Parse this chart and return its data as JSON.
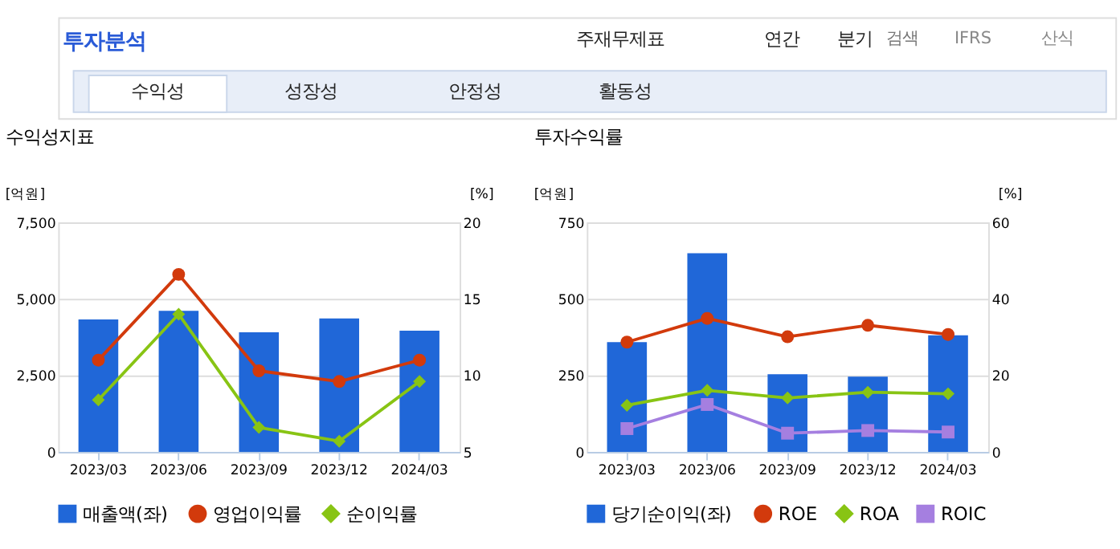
{
  "chart_data": [
    {
      "type": "bar",
      "title": "수익성지표",
      "ylabel": "[억원]",
      "y2label": "[%]",
      "annotations": [
        "투자분석",
        "주재무제표",
        "연간",
        "분기",
        "검색",
        "IFRS",
        "산식",
        "수익성",
        "성장성",
        "안정성",
        "활동성"
      ],
      "categories": [
        "2023/03",
        "2023/06",
        "2023/09",
        "2023/12",
        "2024/03"
      ],
      "series": [
        {
          "name": "매출액(좌)",
          "color": "#2067d8",
          "values": [
            4330,
            4610,
            3910,
            4360,
            3960
          ]
        },
        {
          "name": "영업이익률",
          "type": "line",
          "axis": "y2",
          "marker": "circle",
          "color": "#d23a0c",
          "values": [
            11.0,
            16.6,
            10.3,
            9.6,
            11.0
          ]
        },
        {
          "name": "순이익률",
          "type": "line",
          "axis": "y2",
          "marker": "diamond",
          "color": "#88c414",
          "values": [
            8.4,
            14.0,
            6.6,
            5.7,
            9.6
          ]
        }
      ],
      "ylim": [
        0,
        7500
      ],
      "yticks": [
        0,
        {
          "value": 2500,
          "label": "2,500"
        },
        {
          "value": 5000,
          "label": "5,000"
        },
        {
          "value": 7500,
          "label": "7,500"
        }
      ],
      "y2lim": [
        5,
        20
      ],
      "y2ticks": [
        5,
        10,
        15,
        20
      ],
      "grid": "y",
      "legend": "bottom",
      "line_style": "solid"
    },
    {
      "type": "bar",
      "title": "투자수익률",
      "ylabel": "[억원]",
      "y2label": "[%]",
      "categories": [
        "2023/03",
        "2023/06",
        "2023/09",
        "2023/12",
        "2024/03"
      ],
      "series": [
        {
          "name": "당기순이익(좌)",
          "color": "#2067d8",
          "values": [
            359,
            649,
            254,
            246,
            381
          ]
        },
        {
          "name": "ROE",
          "type": "line",
          "axis": "y2",
          "marker": "circle",
          "color": "#d23a0c",
          "values": [
            28.7,
            34.9,
            30.1,
            33.1,
            30.7
          ]
        },
        {
          "name": "ROA",
          "type": "line",
          "axis": "y2",
          "marker": "diamond",
          "color": "#88c414",
          "values": [
            12.2,
            16.1,
            14.1,
            15.6,
            15.2
          ]
        },
        {
          "name": "ROIC",
          "type": "line",
          "axis": "y2",
          "marker": "square",
          "color": "#a57fe0",
          "values": [
            6.1,
            12.4,
            4.9,
            5.6,
            5.2
          ]
        }
      ],
      "ylim": [
        0,
        750
      ],
      "yticks": [
        0,
        250,
        500,
        750
      ],
      "y2lim": [
        0,
        60
      ],
      "y2ticks": [
        0,
        20,
        40,
        60
      ],
      "grid": "y",
      "legend": "bottom",
      "line_style": "solid"
    }
  ]
}
